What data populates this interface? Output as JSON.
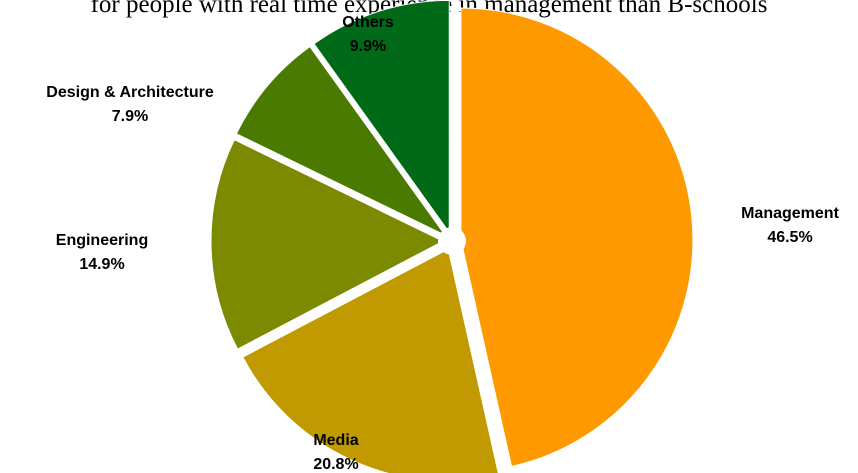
{
  "headline": "for people with real time experience in management than B-schools",
  "chart_data": {
    "type": "pie",
    "title": "",
    "slices": [
      {
        "label": "Management",
        "value": 46.5,
        "value_text": "46.5%",
        "color": "#FF9900"
      },
      {
        "label": "Media",
        "value": 20.8,
        "value_text": "20.8%",
        "color": "#C09A00"
      },
      {
        "label": "Engineering",
        "value": 14.9,
        "value_text": "14.9%",
        "color": "#7B8A00"
      },
      {
        "label": "Design & Architecture",
        "value": 7.9,
        "value_text": "7.9%",
        "color": "#4A7A00"
      },
      {
        "label": "Others",
        "value": 9.9,
        "value_text": "9.9%",
        "color": "#006A18"
      }
    ]
  }
}
